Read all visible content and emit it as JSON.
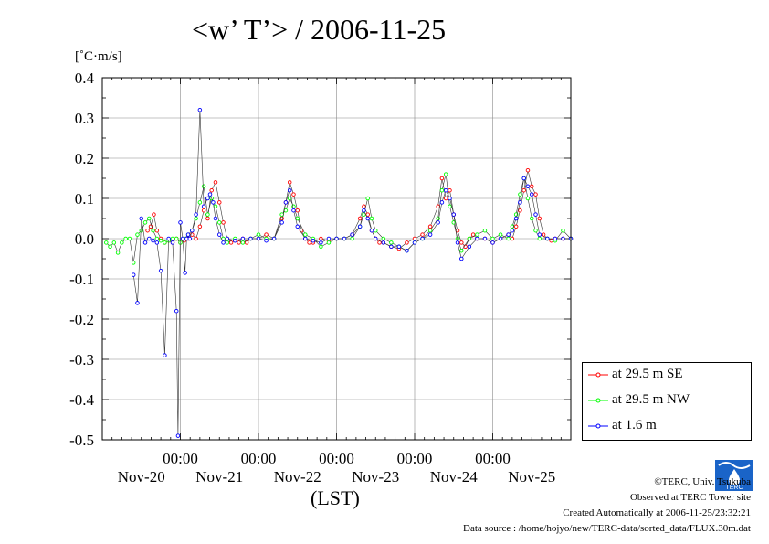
{
  "chart_data": {
    "type": "line",
    "title": "<w’ T’> / 2006-11-25",
    "ylabel": "[˚C·m/s]",
    "xlabel": "(LST)",
    "ylim": [
      -0.5,
      0.4
    ],
    "yticks": [
      "0.4",
      "0.3",
      "0.2",
      "0.1",
      "0.0",
      "-0.1",
      "-0.2",
      "-0.3",
      "-0.4",
      "-0.5"
    ],
    "xlim": [
      -1.0,
      5.0
    ],
    "xtick_times": [
      "00:00",
      "00:00",
      "00:00",
      "00:00",
      "00:00"
    ],
    "xtick_dates": [
      "Nov-20",
      "Nov-21",
      "Nov-22",
      "Nov-23",
      "Nov-24",
      "Nov-25"
    ],
    "grid": true,
    "legend_position": "bottom-right",
    "series": [
      {
        "name": "at 29.5 m SE",
        "color": "#ff0000",
        "x": [
          -0.42,
          -0.38,
          -0.34,
          -0.3,
          -0.25,
          -0.2,
          -0.15,
          -0.1,
          -0.05,
          0.0,
          0.05,
          0.1,
          0.15,
          0.2,
          0.25,
          0.3,
          0.35,
          0.4,
          0.45,
          0.5,
          0.55,
          0.6,
          0.65,
          0.7,
          0.75,
          0.8,
          0.85,
          0.9,
          1.0,
          1.1,
          1.2,
          1.3,
          1.35,
          1.4,
          1.45,
          1.5,
          1.55,
          1.6,
          1.65,
          1.7,
          1.8,
          1.9,
          2.0,
          2.1,
          2.2,
          2.3,
          2.35,
          2.4,
          2.45,
          2.5,
          2.55,
          2.6,
          2.7,
          2.8,
          2.9,
          3.0,
          3.1,
          3.2,
          3.3,
          3.35,
          3.4,
          3.45,
          3.5,
          3.55,
          3.6,
          3.65,
          3.7,
          3.75,
          3.8,
          3.9,
          4.0,
          4.1,
          4.2,
          4.25,
          4.3,
          4.35,
          4.4,
          4.45,
          4.5,
          4.55,
          4.6,
          4.65,
          4.7,
          4.75,
          4.8,
          4.9,
          5.0
        ],
        "y": [
          0.02,
          0.03,
          0.06,
          0.02,
          0.0,
          -0.01,
          -0.005,
          -0.01,
          0.0,
          -0.01,
          -0.005,
          0.0,
          0.01,
          0.0,
          0.03,
          0.07,
          0.05,
          0.12,
          0.14,
          0.09,
          0.04,
          0.0,
          -0.01,
          -0.005,
          -0.01,
          0.0,
          -0.01,
          0.0,
          0.0,
          0.01,
          0.0,
          0.05,
          0.09,
          0.14,
          0.11,
          0.07,
          0.02,
          0.0,
          -0.01,
          -0.01,
          0.0,
          -0.005,
          0.0,
          0.0,
          0.01,
          0.05,
          0.08,
          0.06,
          0.02,
          0.0,
          -0.01,
          -0.01,
          -0.02,
          -0.025,
          -0.01,
          0.0,
          0.01,
          0.03,
          0.08,
          0.15,
          0.1,
          0.12,
          0.06,
          0.02,
          -0.01,
          -0.02,
          0.0,
          0.01,
          0.0,
          0.0,
          -0.01,
          0.0,
          0.01,
          0.0,
          0.03,
          0.07,
          0.12,
          0.17,
          0.13,
          0.11,
          0.05,
          0.01,
          0.0,
          -0.005,
          0.0,
          0.0,
          0.0
        ]
      },
      {
        "name": "at 29.5 m NW",
        "color": "#00ff00",
        "x": [
          -0.95,
          -0.9,
          -0.85,
          -0.8,
          -0.75,
          -0.7,
          -0.65,
          -0.6,
          -0.55,
          -0.5,
          -0.45,
          -0.4,
          -0.35,
          -0.3,
          -0.25,
          -0.2,
          -0.15,
          -0.1,
          -0.05,
          0.0,
          0.05,
          0.1,
          0.15,
          0.2,
          0.25,
          0.3,
          0.35,
          0.4,
          0.45,
          0.5,
          0.55,
          0.6,
          0.7,
          0.8,
          0.9,
          1.0,
          1.1,
          1.2,
          1.3,
          1.35,
          1.4,
          1.45,
          1.5,
          1.6,
          1.7,
          1.8,
          1.9,
          2.0,
          2.1,
          2.2,
          2.3,
          2.35,
          2.4,
          2.45,
          2.5,
          2.6,
          2.7,
          2.8,
          2.9,
          3.0,
          3.1,
          3.2,
          3.3,
          3.35,
          3.4,
          3.45,
          3.5,
          3.55,
          3.6,
          3.7,
          3.8,
          3.9,
          4.0,
          4.1,
          4.2,
          4.25,
          4.3,
          4.35,
          4.4,
          4.45,
          4.5,
          4.55,
          4.6,
          4.7,
          4.8,
          4.9,
          5.0
        ],
        "y": [
          -0.01,
          -0.02,
          -0.01,
          -0.035,
          -0.01,
          0.0,
          0.0,
          -0.06,
          0.01,
          0.02,
          0.04,
          0.05,
          0.02,
          0.0,
          -0.005,
          -0.01,
          -0.005,
          0.0,
          0.0,
          -0.01,
          0.0,
          0.01,
          0.02,
          0.05,
          0.09,
          0.13,
          0.06,
          0.1,
          0.08,
          0.04,
          0.0,
          -0.01,
          0.0,
          -0.01,
          0.0,
          0.01,
          0.0,
          0.0,
          0.06,
          0.07,
          0.1,
          0.08,
          0.05,
          0.01,
          0.0,
          -0.02,
          -0.01,
          0.0,
          0.0,
          0.0,
          0.03,
          0.06,
          0.1,
          0.05,
          0.02,
          0.0,
          -0.01,
          -0.02,
          -0.03,
          -0.01,
          0.0,
          0.02,
          0.05,
          0.12,
          0.16,
          0.08,
          0.04,
          0.0,
          -0.03,
          0.0,
          0.01,
          0.02,
          0.0,
          0.01,
          0.0,
          0.03,
          0.06,
          0.11,
          0.15,
          0.1,
          0.05,
          0.02,
          0.0,
          0.0,
          -0.005,
          0.02,
          0.0
        ]
      },
      {
        "name": "at 1.6 m",
        "color": "#0000ff",
        "x": [
          -0.6,
          -0.55,
          -0.5,
          -0.45,
          -0.4,
          -0.35,
          -0.3,
          -0.25,
          -0.2,
          -0.15,
          -0.1,
          -0.05,
          -0.03,
          0.0,
          0.03,
          0.06,
          0.08,
          0.1,
          0.12,
          0.15,
          0.2,
          0.25,
          0.3,
          0.35,
          0.38,
          0.42,
          0.45,
          0.5,
          0.55,
          0.6,
          0.7,
          0.8,
          0.9,
          1.0,
          1.1,
          1.2,
          1.3,
          1.35,
          1.4,
          1.45,
          1.5,
          1.6,
          1.7,
          1.8,
          1.9,
          2.0,
          2.1,
          2.2,
          2.3,
          2.35,
          2.4,
          2.45,
          2.5,
          2.6,
          2.7,
          2.8,
          2.9,
          3.0,
          3.1,
          3.2,
          3.3,
          3.35,
          3.4,
          3.45,
          3.5,
          3.55,
          3.6,
          3.7,
          3.8,
          3.9,
          4.0,
          4.1,
          4.2,
          4.25,
          4.3,
          4.35,
          4.4,
          4.45,
          4.5,
          4.55,
          4.6,
          4.7,
          4.8,
          4.9,
          5.0
        ],
        "y": [
          -0.09,
          -0.16,
          0.05,
          -0.01,
          0.0,
          -0.005,
          -0.01,
          -0.08,
          -0.29,
          0.0,
          -0.01,
          -0.18,
          -0.49,
          0.04,
          0.0,
          -0.085,
          0.0,
          0.01,
          0.0,
          0.02,
          0.06,
          0.32,
          0.08,
          0.1,
          0.11,
          0.09,
          0.05,
          0.01,
          -0.01,
          0.0,
          -0.005,
          0.0,
          0.0,
          0.0,
          -0.005,
          0.0,
          0.04,
          0.09,
          0.12,
          0.07,
          0.03,
          0.0,
          -0.005,
          -0.01,
          0.0,
          0.0,
          0.0,
          0.01,
          0.03,
          0.07,
          0.05,
          0.02,
          0.0,
          -0.01,
          -0.02,
          -0.02,
          -0.03,
          -0.01,
          0.0,
          0.01,
          0.04,
          0.09,
          0.12,
          0.1,
          0.06,
          -0.01,
          -0.05,
          -0.02,
          0.0,
          0.0,
          -0.01,
          0.0,
          0.01,
          0.02,
          0.05,
          0.09,
          0.15,
          0.13,
          0.11,
          0.06,
          0.01,
          0.0,
          0.0,
          0.0,
          0.0
        ]
      }
    ]
  },
  "footer": {
    "copyright": "©TERC, Univ. Tsukuba",
    "observed": "Observed at TERC Tower site",
    "created": "Created Automatically at 2006-11-25/23:32:21",
    "source": "Data source : /home/hojyo/new/TERC-data/sorted_data/FLUX.30m.dat"
  },
  "logo": {
    "text": "TERC",
    "color": "#1a64c8"
  }
}
